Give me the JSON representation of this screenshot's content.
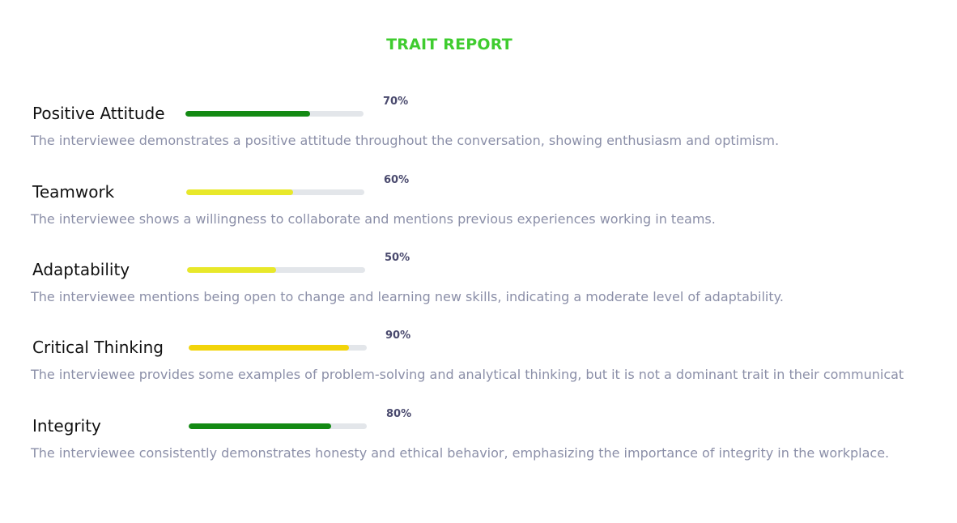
{
  "report": {
    "title": "TRAIT REPORT"
  },
  "traits": [
    {
      "name": "Positive Attitude",
      "percent_label": "70%",
      "level": 0.7,
      "bar_color": "#138a13",
      "description": "The interviewee demonstrates a positive attitude throughout the conversation, showing enthusiasm and optimism."
    },
    {
      "name": "Teamwork",
      "percent_label": "60%",
      "level": 0.6,
      "bar_color": "#e8e82a",
      "description": "The interviewee shows a willingness to collaborate and mentions previous experiences working in teams."
    },
    {
      "name": "Adaptability",
      "percent_label": "50%",
      "level": 0.5,
      "bar_color": "#e8e82a",
      "description": "The interviewee mentions being open to change and learning new skills, indicating a moderate level of adaptability."
    },
    {
      "name": "Critical Thinking",
      "percent_label": "90%",
      "level": 0.9,
      "bar_color": "#f2d40a",
      "description": "The interviewee provides some examples of problem-solving and analytical thinking, but it is not a dominant trait in their communicat"
    },
    {
      "name": "Integrity",
      "percent_label": "80%",
      "level": 0.8,
      "bar_color": "#138a13",
      "description": "The interviewee consistently demonstrates honesty and ethical behavior, emphasizing the importance of integrity in the workplace."
    }
  ]
}
